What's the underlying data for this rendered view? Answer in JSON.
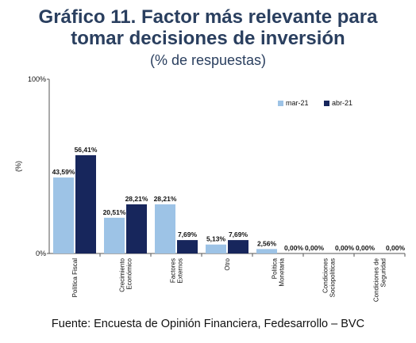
{
  "title_line1": "Gráfico 11. Factor más relevante para",
  "title_line2": "tomar decisiones de inversión",
  "subtitle": "(% de respuestas)",
  "source": "Fuente: Encuesta de Opinión Financiera, Fedesarrollo – BVC",
  "colors": {
    "mar21": "#9dc3e6",
    "abr21": "#17265c"
  },
  "chart_data": {
    "type": "bar",
    "ylabel": "(%)",
    "ylim": [
      0,
      100
    ],
    "yticks": [
      "0%",
      "100%"
    ],
    "legend_position": "top-right",
    "categories": [
      [
        "Política Fiscal"
      ],
      [
        "Crecimiento",
        "Económico"
      ],
      [
        "Factores",
        "Externos"
      ],
      [
        "Otro"
      ],
      [
        "Política",
        "Monetaria"
      ],
      [
        "Condiciones",
        "Sociopolíticas"
      ],
      [
        "Condiciones de",
        "Seguridad"
      ]
    ],
    "series": [
      {
        "name": "mar-21",
        "values": [
          43.59,
          20.51,
          28.21,
          5.13,
          2.56,
          0.0,
          0.0
        ],
        "labels": [
          "43,59%",
          "20,51%",
          "28,21%",
          "5,13%",
          "2,56%",
          "0,00%",
          "0,00%"
        ]
      },
      {
        "name": "abr-21",
        "values": [
          56.41,
          28.21,
          7.69,
          7.69,
          0.0,
          0.0,
          0.0
        ],
        "labels": [
          "56,41%",
          "28,21%",
          "7,69%",
          "7,69%",
          "0,00%",
          "0,00%",
          "0,00%"
        ]
      }
    ]
  }
}
